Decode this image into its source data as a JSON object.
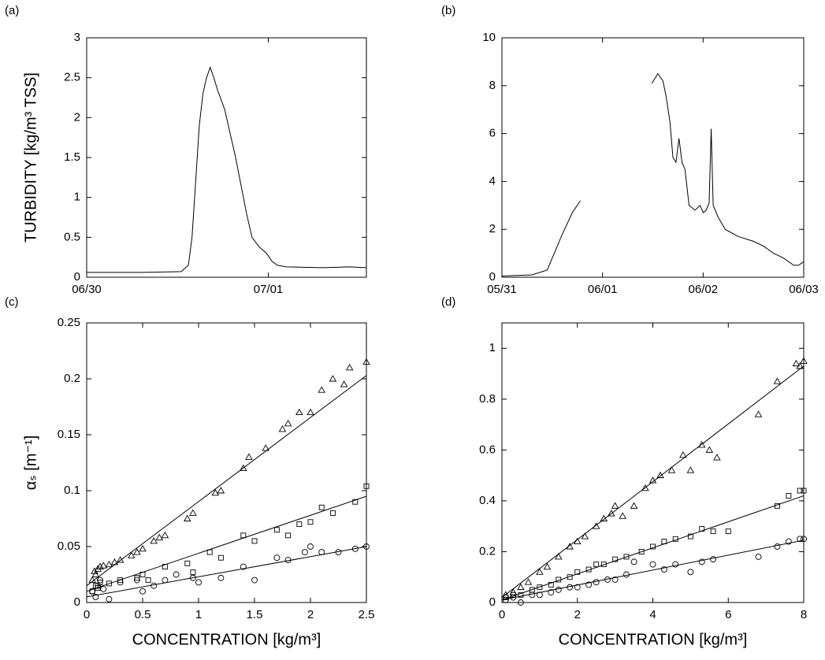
{
  "chart_data": [
    {
      "type": "line",
      "label": "(a)",
      "y_label": "TURBIDITY [kg/m³ TSS]",
      "x": [
        0,
        0.3,
        0.52,
        0.56,
        0.58,
        0.6,
        0.62,
        0.64,
        0.66,
        0.68,
        0.7,
        0.72,
        0.76,
        0.79,
        0.82,
        0.85,
        0.88,
        0.91,
        0.95,
        0.99,
        1.02,
        1.05,
        1.1,
        1.3,
        1.45,
        1.54
      ],
      "values": [
        0.06,
        0.06,
        0.07,
        0.15,
        0.5,
        1.2,
        1.9,
        2.3,
        2.5,
        2.63,
        2.5,
        2.35,
        2.1,
        1.8,
        1.5,
        1.15,
        0.8,
        0.5,
        0.38,
        0.3,
        0.2,
        0.15,
        0.13,
        0.12,
        0.13,
        0.12
      ],
      "color": "#000000",
      "xlim": [
        0,
        1.54
      ],
      "xticks": [
        {
          "value": 0,
          "label": "06/30"
        },
        {
          "value": 1,
          "label": "07/01"
        }
      ],
      "ylim": [
        0,
        3
      ],
      "yticks": [
        0,
        0.5,
        1,
        1.5,
        2,
        2.5,
        3
      ]
    },
    {
      "type": "line",
      "label": "(b)",
      "x": [
        0,
        0.3,
        0.45,
        0.5,
        0.6,
        0.7,
        0.78,
        1.0,
        1.49,
        1.55,
        1.6,
        1.63,
        1.67,
        1.7,
        1.73,
        1.76,
        1.79,
        1.82,
        1.86,
        1.92,
        1.97,
        2.0,
        2.03,
        2.06,
        2.08,
        2.1,
        2.15,
        2.22,
        2.35,
        2.5,
        2.6,
        2.7,
        2.8,
        2.9,
        2.95,
        3.0
      ],
      "values": [
        0.05,
        0.1,
        0.3,
        0.8,
        1.8,
        2.7,
        3.2,
        null,
        8.1,
        8.5,
        8.2,
        7.6,
        6.5,
        5.0,
        4.8,
        5.8,
        4.8,
        4.5,
        3.0,
        2.8,
        3.0,
        2.7,
        2.8,
        3.1,
        6.2,
        3.0,
        2.5,
        2.0,
        1.7,
        1.5,
        1.3,
        1.0,
        0.8,
        0.5,
        0.5,
        0.65
      ],
      "color": "#000000",
      "xlim": [
        0,
        3
      ],
      "xticks": [
        {
          "value": 0,
          "label": "05/31"
        },
        {
          "value": 1,
          "label": "06/01"
        },
        {
          "value": 2,
          "label": "06/02"
        },
        {
          "value": 3,
          "label": "06/03"
        }
      ],
      "ylim": [
        0,
        10
      ],
      "yticks": [
        0,
        2,
        4,
        6,
        8,
        10
      ]
    },
    {
      "type": "scatter",
      "label": "(c)",
      "x_label": "CONCENTRATION [kg/m³]",
      "y_label": "αₛ [m⁻¹]",
      "series": [
        {
          "marker": "triangle",
          "color": "#000000",
          "x": [
            0.05,
            0.07,
            0.08,
            0.1,
            0.12,
            0.15,
            0.2,
            0.25,
            0.3,
            0.4,
            0.45,
            0.5,
            0.6,
            0.65,
            0.7,
            0.9,
            0.95,
            1.15,
            1.2,
            1.4,
            1.45,
            1.6,
            1.75,
            1.8,
            1.9,
            2.0,
            2.1,
            2.2,
            2.3,
            2.35,
            2.5
          ],
          "values": [
            0.02,
            0.028,
            0.025,
            0.03,
            0.032,
            0.033,
            0.034,
            0.036,
            0.038,
            0.042,
            0.045,
            0.048,
            0.055,
            0.058,
            0.06,
            0.075,
            0.08,
            0.098,
            0.1,
            0.12,
            0.13,
            0.138,
            0.155,
            0.16,
            0.17,
            0.17,
            0.19,
            0.2,
            0.195,
            0.21,
            0.215
          ],
          "fit": {
            "x": [
              0,
              2.5
            ],
            "values": [
              0.015,
              0.203
            ]
          }
        },
        {
          "marker": "square",
          "color": "#000000",
          "x": [
            0.05,
            0.08,
            0.1,
            0.12,
            0.2,
            0.3,
            0.45,
            0.5,
            0.55,
            0.7,
            0.9,
            0.95,
            1.1,
            1.2,
            1.4,
            1.5,
            1.7,
            1.8,
            1.9,
            2.0,
            2.1,
            2.2,
            2.4,
            2.5
          ],
          "values": [
            0.01,
            0.015,
            0.013,
            0.018,
            0.017,
            0.02,
            0.022,
            0.025,
            0.02,
            0.032,
            0.035,
            0.027,
            0.045,
            0.04,
            0.06,
            0.055,
            0.065,
            0.06,
            0.07,
            0.072,
            0.085,
            0.08,
            0.09,
            0.104
          ],
          "fit": {
            "x": [
              0,
              2.5
            ],
            "values": [
              0.01,
              0.095
            ]
          }
        },
        {
          "marker": "circle",
          "color": "#000000",
          "x": [
            0.05,
            0.08,
            0.1,
            0.12,
            0.15,
            0.2,
            0.3,
            0.45,
            0.5,
            0.6,
            0.7,
            0.8,
            0.95,
            1.0,
            1.2,
            1.4,
            1.5,
            1.7,
            1.8,
            1.95,
            2.0,
            2.1,
            2.25,
            2.4,
            2.5
          ],
          "values": [
            0.01,
            0.005,
            0.015,
            0.02,
            0.012,
            0.003,
            0.018,
            0.02,
            0.01,
            0.015,
            0.02,
            0.025,
            0.022,
            0.018,
            0.022,
            0.032,
            0.02,
            0.04,
            0.038,
            0.045,
            0.05,
            0.045,
            0.045,
            0.048,
            0.05
          ],
          "fit": {
            "x": [
              0,
              2.5
            ],
            "values": [
              0.005,
              0.05
            ]
          }
        }
      ],
      "xlim": [
        0,
        2.5
      ],
      "xticks": [
        0,
        0.5,
        1,
        1.5,
        2,
        2.5
      ],
      "ylim": [
        0,
        0.25
      ],
      "yticks": [
        0,
        0.05,
        0.1,
        0.15,
        0.2,
        0.25
      ]
    },
    {
      "type": "scatter",
      "label": "(d)",
      "x_label": "CONCENTRATION [kg/m³]",
      "series": [
        {
          "marker": "triangle",
          "color": "#000000",
          "x": [
            0.1,
            0.3,
            0.5,
            0.7,
            1.0,
            1.2,
            1.5,
            1.8,
            2.0,
            2.2,
            2.5,
            2.7,
            2.9,
            3.0,
            3.2,
            3.5,
            3.8,
            4.0,
            4.2,
            4.5,
            4.8,
            5.0,
            5.3,
            5.5,
            5.7,
            6.8,
            7.3,
            7.8,
            7.9,
            8.0
          ],
          "values": [
            0.03,
            0.04,
            0.06,
            0.08,
            0.12,
            0.14,
            0.18,
            0.22,
            0.24,
            0.26,
            0.3,
            0.33,
            0.35,
            0.38,
            0.34,
            0.38,
            0.45,
            0.48,
            0.5,
            0.52,
            0.58,
            0.52,
            0.62,
            0.6,
            0.57,
            0.74,
            0.87,
            0.94,
            0.93,
            0.95
          ],
          "fit": {
            "x": [
              0,
              8
            ],
            "values": [
              0.02,
              0.93
            ]
          }
        },
        {
          "marker": "square",
          "color": "#000000",
          "x": [
            0.1,
            0.3,
            0.5,
            0.8,
            1.0,
            1.3,
            1.5,
            1.8,
            2.0,
            2.3,
            2.5,
            2.7,
            3.0,
            3.3,
            3.7,
            4.0,
            4.3,
            4.6,
            5.0,
            5.3,
            5.6,
            6.0,
            7.3,
            7.6,
            7.9,
            8.0
          ],
          "values": [
            0.02,
            0.03,
            0.03,
            0.05,
            0.06,
            0.07,
            0.09,
            0.1,
            0.12,
            0.13,
            0.15,
            0.15,
            0.17,
            0.18,
            0.2,
            0.22,
            0.24,
            0.25,
            0.26,
            0.29,
            0.28,
            0.28,
            0.38,
            0.42,
            0.44,
            0.44
          ],
          "fit": {
            "x": [
              0,
              8
            ],
            "values": [
              0.01,
              0.42
            ]
          }
        },
        {
          "marker": "circle",
          "color": "#000000",
          "x": [
            0.1,
            0.3,
            0.5,
            0.8,
            1.0,
            1.3,
            1.5,
            1.8,
            2.0,
            2.3,
            2.5,
            2.8,
            3.0,
            3.3,
            3.5,
            4.0,
            4.3,
            4.6,
            5.0,
            5.3,
            5.6,
            6.8,
            7.3,
            7.6,
            7.9,
            8.0
          ],
          "values": [
            0.01,
            0.02,
            0.0,
            0.03,
            0.03,
            0.04,
            0.05,
            0.06,
            0.06,
            0.07,
            0.08,
            0.09,
            0.09,
            0.11,
            0.16,
            0.15,
            0.13,
            0.15,
            0.12,
            0.16,
            0.17,
            0.18,
            0.22,
            0.24,
            0.25,
            0.25
          ],
          "fit": {
            "x": [
              0,
              8
            ],
            "values": [
              0.01,
              0.245
            ]
          }
        }
      ],
      "xlim": [
        0,
        8
      ],
      "xticks": [
        0,
        2,
        4,
        6,
        8
      ],
      "ylim": [
        0,
        1.1
      ],
      "yticks": [
        0,
        0.2,
        0.4,
        0.6,
        0.8,
        1
      ]
    }
  ]
}
